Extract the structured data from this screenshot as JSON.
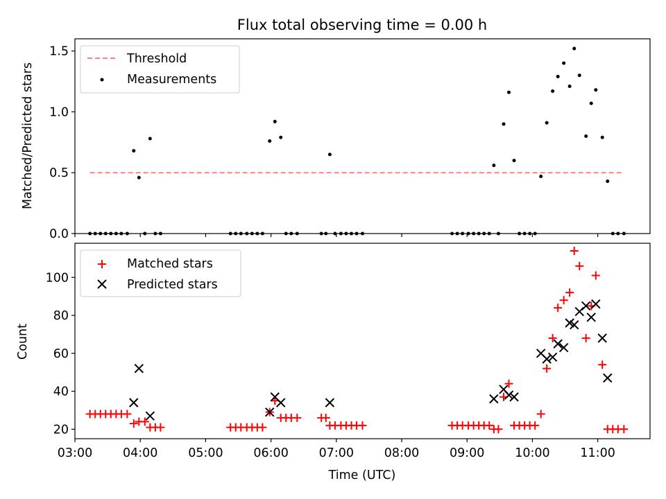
{
  "chart_data": [
    {
      "type": "scatter",
      "title": "Flux total observing time = 0.00 h",
      "xlabel": "",
      "ylabel": "Matched/Predicted stars",
      "ylim": [
        0,
        1.6
      ],
      "yticks": [
        0.0,
        0.5,
        1.0,
        1.5
      ],
      "ytick_labels": [
        "0.0",
        "0.5",
        "1.0",
        "1.5"
      ],
      "xlim": [
        3.0,
        11.8
      ],
      "xticks": [
        3,
        4,
        5,
        6,
        7,
        8,
        9,
        10,
        11
      ],
      "legend": "upper-left",
      "legend_entries": [
        "Threshold",
        "Measurements"
      ],
      "threshold": {
        "name": "Threshold",
        "y": 0.5,
        "x_start": 3.23,
        "x_end": 11.4,
        "color": "#ff8080",
        "style": "dashed"
      },
      "series": [
        {
          "name": "Measurements",
          "color": "#000000",
          "marker": "dot",
          "x": [
            3.23,
            3.31,
            3.39,
            3.47,
            3.55,
            3.63,
            3.71,
            3.8,
            3.9,
            3.98,
            4.07,
            4.15,
            4.23,
            4.31,
            5.38,
            5.46,
            5.54,
            5.63,
            5.71,
            5.79,
            5.87,
            5.98,
            6.06,
            6.15,
            6.23,
            6.31,
            6.4,
            6.77,
            6.84,
            6.9,
            6.98,
            7.07,
            7.15,
            7.23,
            7.31,
            7.4,
            8.77,
            8.85,
            8.93,
            9.02,
            9.1,
            9.18,
            9.26,
            9.34,
            9.41,
            9.48,
            9.56,
            9.64,
            9.72,
            9.8,
            9.88,
            9.96,
            10.04,
            10.13,
            10.22,
            10.31,
            10.39,
            10.48,
            10.57,
            10.64,
            10.72,
            10.82,
            10.9,
            10.97,
            11.07,
            11.15,
            11.23,
            11.31,
            11.4
          ],
          "y": [
            0,
            0,
            0,
            0,
            0,
            0,
            0,
            0,
            0.68,
            0.46,
            0,
            0.78,
            0,
            0,
            0,
            0,
            0,
            0,
            0,
            0,
            0,
            0.76,
            0.92,
            0.79,
            0,
            0,
            0,
            0,
            0,
            0.65,
            0,
            0,
            0,
            0,
            0,
            0,
            0,
            0,
            0,
            0,
            0,
            0,
            0,
            0,
            0.56,
            0,
            0.9,
            1.16,
            0.6,
            0,
            0,
            0,
            0,
            0.47,
            0.91,
            1.17,
            1.29,
            1.4,
            1.21,
            1.52,
            1.3,
            0.8,
            1.07,
            1.18,
            0.79,
            0.43,
            0,
            0,
            0
          ]
        }
      ]
    },
    {
      "type": "scatter",
      "title": "",
      "xlabel": "Time (UTC)",
      "ylabel": "Count",
      "ylim": [
        15,
        118
      ],
      "yticks": [
        20,
        40,
        60,
        80,
        100
      ],
      "ytick_labels": [
        "20",
        "40",
        "60",
        "80",
        "100"
      ],
      "xlim": [
        3.0,
        11.8
      ],
      "xticks": [
        3,
        4,
        5,
        6,
        7,
        8,
        9,
        10,
        11
      ],
      "xtick_labels": [
        "03:00",
        "04:00",
        "05:00",
        "06:00",
        "07:00",
        "08:00",
        "09:00",
        "10:00",
        "11:00"
      ],
      "legend": "upper-left",
      "legend_entries": [
        "Matched stars",
        "Predicted stars"
      ],
      "series": [
        {
          "name": "Matched stars",
          "color": "#ff0000",
          "marker": "plus",
          "x": [
            3.23,
            3.31,
            3.39,
            3.47,
            3.55,
            3.63,
            3.71,
            3.8,
            3.9,
            3.98,
            4.07,
            4.15,
            4.23,
            4.31,
            5.38,
            5.46,
            5.54,
            5.63,
            5.71,
            5.79,
            5.87,
            5.98,
            6.06,
            6.15,
            6.23,
            6.31,
            6.4,
            6.77,
            6.84,
            6.9,
            6.98,
            7.07,
            7.15,
            7.23,
            7.31,
            7.4,
            8.77,
            8.85,
            8.93,
            9.02,
            9.1,
            9.18,
            9.26,
            9.34,
            9.41,
            9.48,
            9.56,
            9.64,
            9.72,
            9.8,
            9.88,
            9.96,
            10.04,
            10.13,
            10.22,
            10.31,
            10.39,
            10.48,
            10.57,
            10.64,
            10.72,
            10.82,
            10.9,
            10.97,
            11.07,
            11.15,
            11.23,
            11.31,
            11.4
          ],
          "y": [
            28,
            28,
            28,
            28,
            28,
            28,
            28,
            28,
            23,
            24,
            24,
            21,
            21,
            21,
            21,
            21,
            21,
            21,
            21,
            21,
            21,
            29,
            35,
            26,
            26,
            26,
            26,
            26,
            26,
            22,
            22,
            22,
            22,
            22,
            22,
            22,
            22,
            22,
            22,
            22,
            22,
            22,
            22,
            22,
            20,
            20,
            37,
            44,
            22,
            22,
            22,
            22,
            22,
            28,
            52,
            68,
            84,
            88,
            92,
            114,
            106,
            68,
            85,
            101,
            54,
            20,
            20,
            20,
            20
          ]
        },
        {
          "name": "Predicted stars",
          "color": "#000000",
          "marker": "x",
          "x": [
            3.9,
            3.98,
            4.15,
            5.98,
            6.06,
            6.15,
            6.9,
            9.41,
            9.56,
            9.64,
            9.72,
            10.13,
            10.22,
            10.31,
            10.39,
            10.48,
            10.57,
            10.64,
            10.72,
            10.82,
            10.9,
            10.97,
            11.07,
            11.15
          ],
          "y": [
            34,
            52,
            27,
            29,
            37,
            34,
            34,
            36,
            41,
            38,
            37,
            60,
            57,
            58,
            65,
            63,
            76,
            75,
            82,
            85,
            79,
            86,
            68,
            47
          ]
        }
      ]
    }
  ]
}
